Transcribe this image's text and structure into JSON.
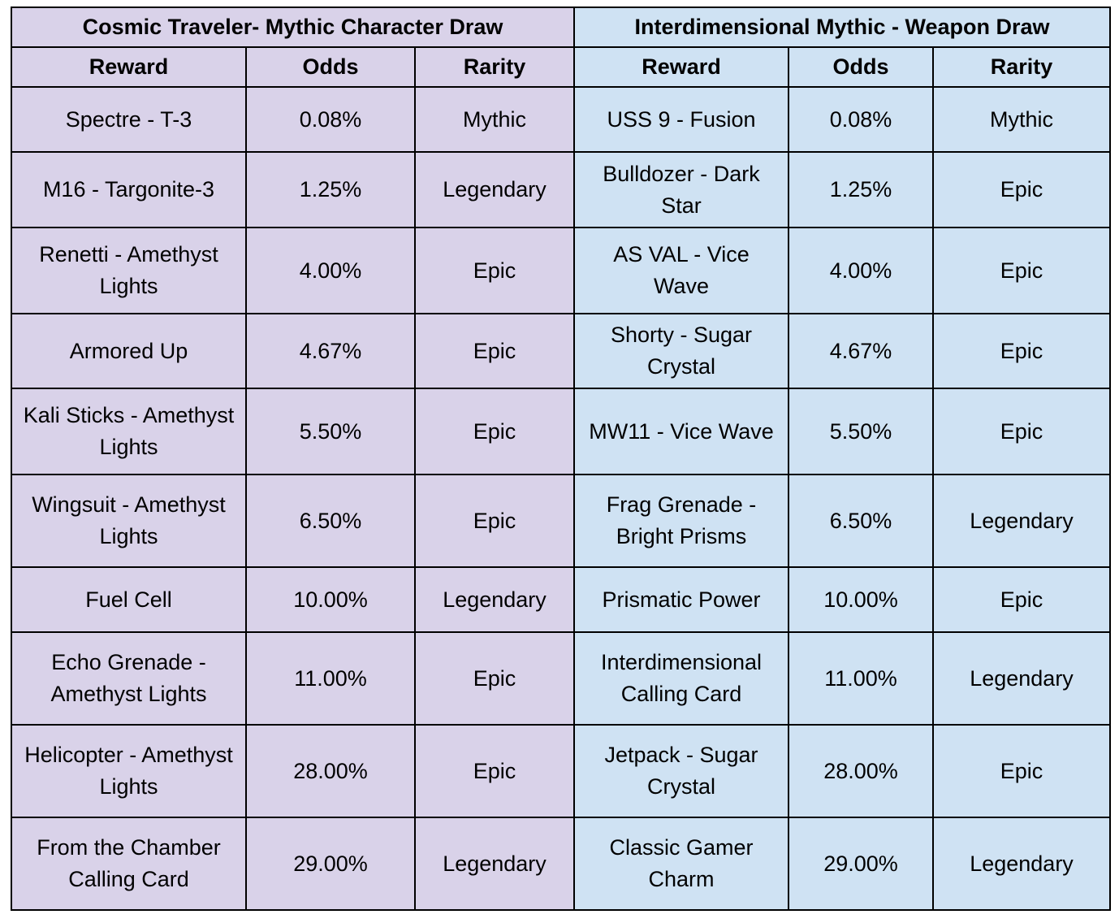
{
  "left": {
    "title": "Cosmic Traveler- Mythic Character Draw",
    "headers": [
      "Reward",
      "Odds",
      "Rarity"
    ]
  },
  "right": {
    "title": "Interdimensional Mythic - Weapon Draw",
    "headers": [
      "Reward",
      "Odds",
      "Rarity"
    ]
  },
  "rows": [
    {
      "l_reward": "Spectre - T-3",
      "l_odds": "0.08%",
      "l_rarity": "Mythic",
      "r_reward": "USS 9 - Fusion",
      "r_odds": "0.08%",
      "r_rarity": "Mythic"
    },
    {
      "l_reward": "M16 - Targonite-3",
      "l_odds": "1.25%",
      "l_rarity": "Legendary",
      "r_reward": "Bulldozer - Dark Star",
      "r_odds": "1.25%",
      "r_rarity": "Epic"
    },
    {
      "l_reward": "Renetti - Amethyst Lights",
      "l_odds": "4.00%",
      "l_rarity": "Epic",
      "r_reward": "AS VAL - Vice Wave",
      "r_odds": "4.00%",
      "r_rarity": "Epic"
    },
    {
      "l_reward": "Armored Up",
      "l_odds": "4.67%",
      "l_rarity": "Epic",
      "r_reward": "Shorty - Sugar Crystal",
      "r_odds": "4.67%",
      "r_rarity": "Epic"
    },
    {
      "l_reward": "Kali Sticks - Amethyst Lights",
      "l_odds": "5.50%",
      "l_rarity": "Epic",
      "r_reward": "MW11 - Vice Wave",
      "r_odds": "5.50%",
      "r_rarity": "Epic"
    },
    {
      "l_reward": "Wingsuit - Amethyst Lights",
      "l_odds": "6.50%",
      "l_rarity": "Epic",
      "r_reward": "Frag Grenade - Bright Prisms",
      "r_odds": "6.50%",
      "r_rarity": "Legendary"
    },
    {
      "l_reward": "Fuel Cell",
      "l_odds": "10.00%",
      "l_rarity": "Legendary",
      "r_reward": "Prismatic Power",
      "r_odds": "10.00%",
      "r_rarity": "Epic"
    },
    {
      "l_reward": "Echo Grenade - Amethyst Lights",
      "l_odds": "11.00%",
      "l_rarity": "Epic",
      "r_reward": "Interdimensional Calling Card",
      "r_odds": "11.00%",
      "r_rarity": "Legendary"
    },
    {
      "l_reward": "Helicopter - Amethyst Lights",
      "l_odds": "28.00%",
      "l_rarity": "Epic",
      "r_reward": "Jetpack - Sugar Crystal",
      "r_odds": "28.00%",
      "r_rarity": "Epic"
    },
    {
      "l_reward": "From the Chamber Calling Card",
      "l_odds": "29.00%",
      "l_rarity": "Legendary",
      "r_reward": "Classic Gamer Charm",
      "r_odds": "29.00%",
      "r_rarity": "Legendary"
    }
  ],
  "colors": {
    "left_fill": "#d9d2e9",
    "right_fill": "#cfe2f3",
    "border": "#000000"
  }
}
